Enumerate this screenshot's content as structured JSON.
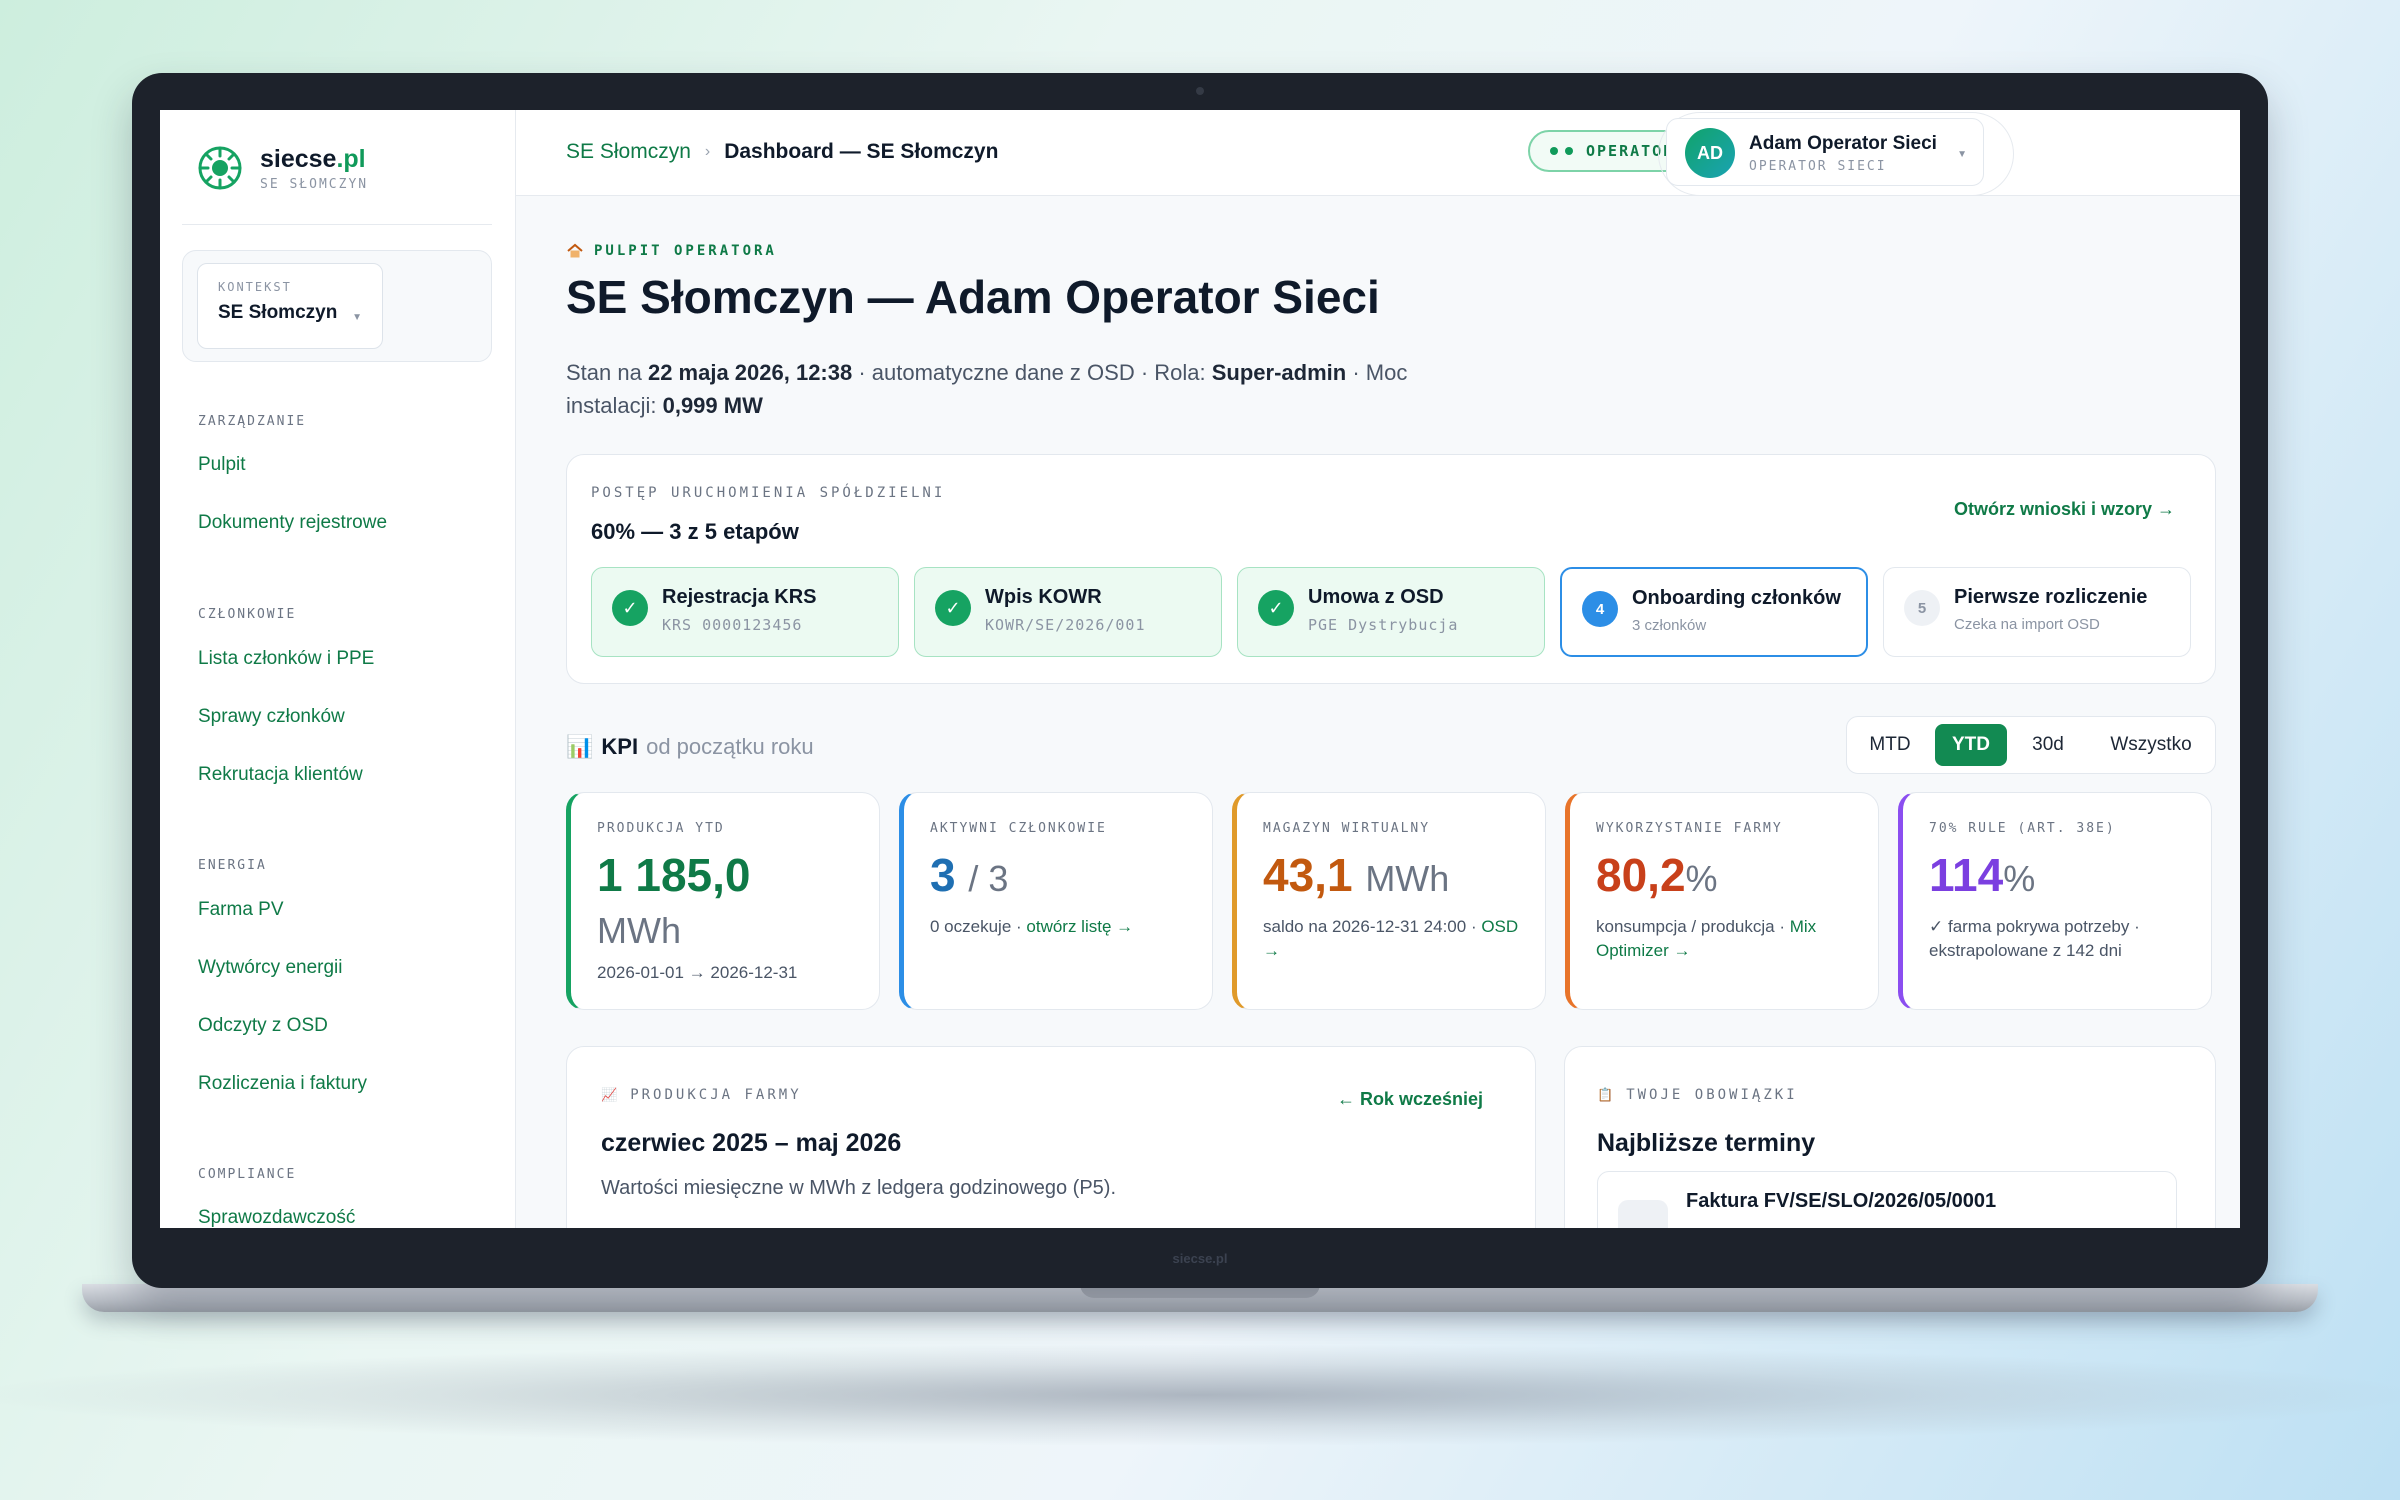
{
  "brand": {
    "name": "siecse",
    "tld": ".pl",
    "sub": "SE SŁOMCZYN",
    "bezel_label": "siecse.pl"
  },
  "context": {
    "label": "KONTEKST",
    "value": "SE Słomczyn"
  },
  "nav": {
    "sections": [
      {
        "title": "ZARZĄDZANIE",
        "items": [
          "Pulpit",
          "Dokumenty rejestrowe"
        ]
      },
      {
        "title": "CZŁONKOWIE",
        "items": [
          "Lista członków i PPE",
          "Sprawy członków",
          "Rekrutacja klientów"
        ]
      },
      {
        "title": "ENERGIA",
        "items": [
          "Farma PV",
          "Wytwórcy energii",
          "Odczyty z OSD",
          "Rozliczenia i faktury"
        ]
      },
      {
        "title": "COMPLIANCE",
        "items": [
          "Sprawozdawczość"
        ]
      }
    ]
  },
  "topbar": {
    "breadcrumb_root": "SE Słomczyn",
    "breadcrumb_current": "Dashboard — SE Słomczyn",
    "role_pill": "OPERATOR SIECI",
    "user": {
      "initials": "AD",
      "name": "Adam Operator Sieci",
      "role": "OPERATOR SIECI"
    }
  },
  "page": {
    "eyebrow": "PULPIT OPERATORA",
    "title": "SE Słomczyn — Adam Operator Sieci",
    "desc_prefix": "Stan na ",
    "desc_date": "22 maja 2026, 12:38",
    "desc_middle": " · automatyczne dane z OSD · Rola: ",
    "desc_role": "Super-admin",
    "desc_power_label": " · Moc instalacji: ",
    "desc_power": "0,999 MW"
  },
  "progress": {
    "kicker": "POSTĘP URUCHOMIENIA SPÓŁDZIELNI",
    "headline": "60% — 3 z 5 etapów",
    "percent": 60,
    "link": "Otwórz wnioski i wzory →",
    "steps": [
      {
        "status": "done",
        "icon": "✓",
        "title": "Rejestracja KRS",
        "sub": "KRS 0000123456"
      },
      {
        "status": "done",
        "icon": "✓",
        "title": "Wpis KOWR",
        "sub": "KOWR/SE/2026/001"
      },
      {
        "status": "done",
        "icon": "✓",
        "title": "Umowa z OSD",
        "sub": "PGE Dystrybucja"
      },
      {
        "status": "active",
        "icon": "4",
        "title": "Onboarding członków",
        "sub": "3 członków"
      },
      {
        "status": "todo",
        "icon": "5",
        "title": "Pierwsze rozliczenie",
        "sub": "Czeka na import OSD"
      }
    ]
  },
  "kpi": {
    "icon": "📊",
    "title": "KPI",
    "subtitle": "od początku roku",
    "ranges": [
      "MTD",
      "YTD",
      "30d",
      "Wszystko"
    ],
    "active_range": "YTD",
    "cards": [
      {
        "label": "PRODUKCJA YTD",
        "value": "1 185,0",
        "unit": "MWh",
        "sub": "2026-01-01 → 2026-12-31",
        "sub_link": "",
        "color": "#0f7a47"
      },
      {
        "label": "AKTYWNI CZŁONKOWIE",
        "value": "3",
        "unit": "/ 3",
        "sub": "0 oczekuje · ",
        "sub_link": "otwórz listę →",
        "color": "#1f6fb2"
      },
      {
        "label": "MAGAZYN WIRTUALNY",
        "value": "43,1",
        "unit": "MWh",
        "sub": "saldo na 2026-12-31 24:00 · ",
        "sub_link": "OSD →",
        "color": "#c2590f"
      },
      {
        "label": "WYKORZYSTANIE FARMY",
        "value": "80,2",
        "unit": "%",
        "sub": "konsumpcja / produkcja · ",
        "sub_link": "Mix Optimizer →",
        "color": "#c8401a"
      },
      {
        "label": "70% RULE (ART. 38E)",
        "value": "114",
        "unit": "%",
        "sub": "✓ farma pokrywa potrzeby · ekstrapolowane z 142 dni",
        "sub_link": "",
        "color": "#7b3fe0"
      }
    ]
  },
  "farm": {
    "kicker": "PRODUKCJA FARMY",
    "icon": "📈",
    "title": "czerwiec 2025 – maj 2026",
    "desc": "Wartości miesięczne w MWh z ledgera godzinowego (P5).",
    "link": "← Rok wcześniej"
  },
  "duties": {
    "kicker": "TWOJE OBOWIĄZKI",
    "icon": "📋",
    "title": "Najbliższe terminy",
    "first_item": "Faktura FV/SE/SLO/2026/05/0001"
  },
  "colors": {
    "accent": "#0f7a47",
    "accent_bright": "#16a362",
    "active_blue": "#2c8ee6",
    "bezel": "#1d222b"
  }
}
